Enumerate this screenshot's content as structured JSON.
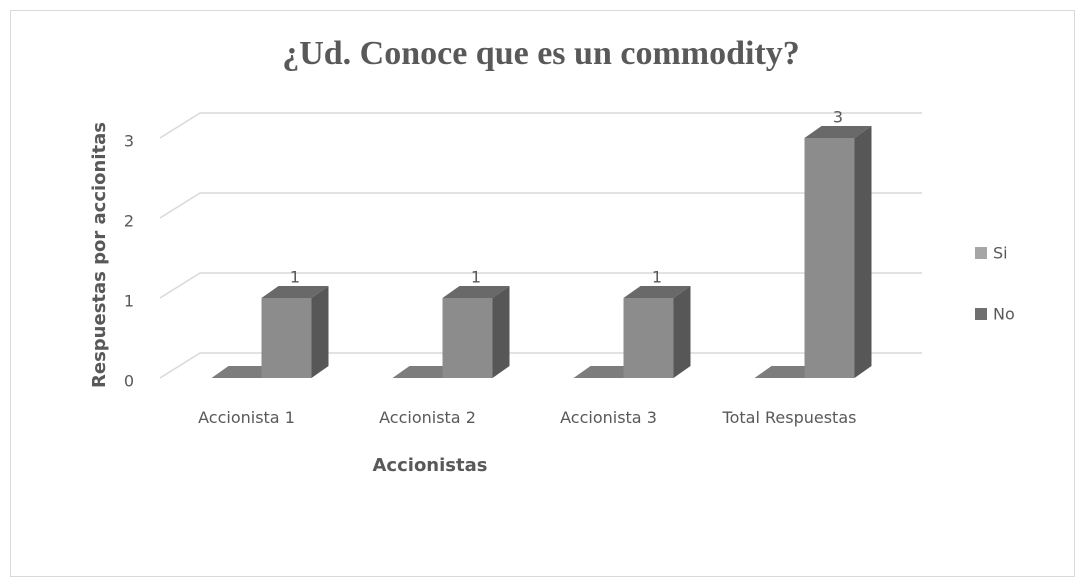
{
  "chart_data": {
    "type": "bar3d",
    "title": "¿Ud. Conoce que es un commodity?",
    "x_label": "Accionistas",
    "y_label": "Respuestas por accionitas",
    "categories": [
      "Accionista 1",
      "Accionista 2",
      "Accionista 3",
      "Total Respuestas"
    ],
    "series": [
      {
        "name": "Si",
        "color": "#a6a6a6",
        "values": [
          0,
          0,
          0,
          0
        ],
        "labels": false
      },
      {
        "name": "No",
        "color": "#8c8c8c",
        "values": [
          1,
          1,
          1,
          3
        ],
        "labels": true
      }
    ],
    "ylim": [
      0,
      3
    ],
    "yticks": [
      0,
      1,
      2,
      3
    ],
    "grid": true,
    "legend": "right"
  }
}
